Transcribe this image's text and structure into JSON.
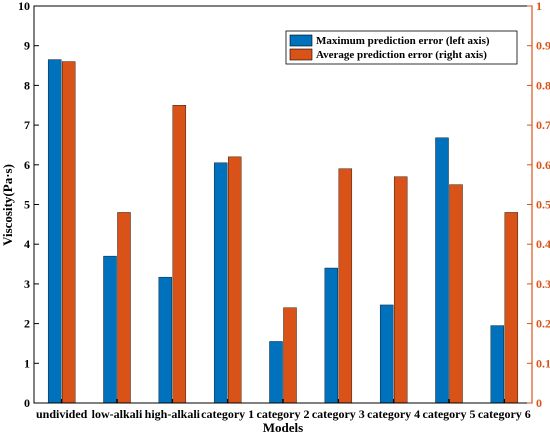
{
  "chart_data": {
    "type": "bar",
    "xlabel": "Models",
    "ylabel_left": "Viscosity(Pa·s)",
    "ylim_left": [
      0,
      10
    ],
    "ylim_right": [
      0,
      1
    ],
    "left_ticks": [
      "0",
      "1",
      "2",
      "3",
      "4",
      "5",
      "6",
      "7",
      "8",
      "9",
      "10"
    ],
    "right_ticks": [
      "0",
      "0.1",
      "0.2",
      "0.3",
      "0.4",
      "0.5",
      "0.6",
      "0.7",
      "0.8",
      "0.9",
      "1"
    ],
    "categories": [
      "undivided",
      "low-alkali",
      "high-alkali",
      "category 1",
      "category 2",
      "category 3",
      "category 4",
      "category 5",
      "category 6"
    ],
    "series": [
      {
        "name": "Maximum prediction error (left axis)",
        "axis": "left",
        "color": "#0072BD",
        "values": [
          8.65,
          3.7,
          3.17,
          6.05,
          1.55,
          3.4,
          2.47,
          6.68,
          1.95
        ]
      },
      {
        "name": "Average prediction error (right axis)",
        "axis": "right",
        "color": "#D95319",
        "values": [
          0.86,
          0.48,
          0.75,
          0.62,
          0.24,
          0.59,
          0.57,
          0.55,
          0.48
        ]
      }
    ],
    "legend_position": "top-right",
    "left_axis_color": "#000000",
    "right_axis_color": "#D95319",
    "grid": false
  }
}
